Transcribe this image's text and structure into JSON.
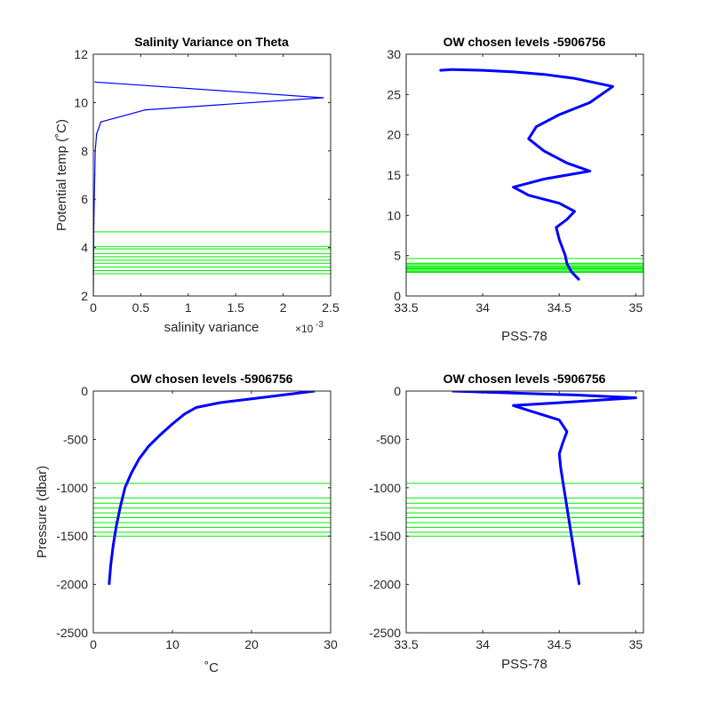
{
  "colors": {
    "profile": "#0000ff",
    "levels": "#00ee00",
    "axis": "#262626",
    "background": "#ffffff"
  },
  "chart_data": [
    {
      "id": "p1",
      "type": "line",
      "title": "Salinity Variance on Theta",
      "xlabel": "salinity variance",
      "ylabel": "Potential temp (˚C)",
      "x_exponent_label": "×10",
      "x_exponent_power": "-3",
      "xlim": [
        0,
        2.5
      ],
      "ylim": [
        2,
        12
      ],
      "xticks": [
        0,
        0.5,
        1,
        1.5,
        2,
        2.5
      ],
      "yticks": [
        2,
        4,
        6,
        8,
        10,
        12
      ],
      "xtick_labels": [
        "0",
        "0.5",
        "1",
        "1.5",
        "2",
        "2.5"
      ],
      "ytick_labels": [
        "2",
        "4",
        "6",
        "8",
        "10",
        "12"
      ],
      "grid": false,
      "series": [
        {
          "x": [
            0.0,
            0.002,
            0.004,
            0.006,
            0.01,
            0.015,
            0.02,
            0.035,
            0.08,
            0.55,
            2.42,
            0.02
          ],
          "y": [
            2.0,
            3.0,
            4.0,
            5.0,
            6.0,
            7.0,
            8.0,
            8.7,
            9.2,
            9.7,
            10.2,
            10.85
          ]
        }
      ],
      "hlines": [
        4.65,
        4.05,
        3.95,
        3.75,
        3.62,
        3.48,
        3.35,
        3.2,
        3.05,
        2.92
      ]
    },
    {
      "id": "p2",
      "type": "line",
      "title": "OW chosen levels -5906756",
      "xlabel": "PSS-78",
      "ylabel": "",
      "xlim": [
        33.5,
        35.05
      ],
      "ylim": [
        0,
        30
      ],
      "xticks": [
        33.5,
        34,
        34.5,
        35
      ],
      "yticks": [
        0,
        5,
        10,
        15,
        20,
        25,
        30
      ],
      "xtick_labels": [
        "33.5",
        "34",
        "34.5",
        "35"
      ],
      "ytick_labels": [
        "0",
        "5",
        "10",
        "15",
        "20",
        "25",
        "30"
      ],
      "grid": false,
      "series": [
        {
          "x": [
            34.63,
            34.58,
            34.55,
            34.54,
            34.52,
            34.5,
            34.48,
            34.55,
            34.6,
            34.5,
            34.4,
            34.3,
            34.25,
            34.2,
            34.3,
            34.4,
            34.55,
            34.7,
            34.55,
            34.4,
            34.3,
            34.35,
            34.5,
            34.7,
            34.85,
            34.6,
            34.4,
            34.2,
            34.0,
            33.8,
            33.72
          ],
          "y": [
            2.0,
            3.0,
            4.0,
            5.0,
            6.0,
            7.0,
            8.5,
            9.5,
            10.5,
            11.5,
            12.0,
            12.5,
            13.0,
            13.5,
            14.0,
            14.5,
            15.0,
            15.5,
            16.5,
            18.0,
            19.5,
            21.0,
            22.5,
            24.0,
            26.0,
            27.0,
            27.5,
            27.8,
            28.0,
            28.1,
            28.0
          ]
        }
      ],
      "hlines": [
        4.65,
        4.05,
        3.95,
        3.75,
        3.62,
        3.48,
        3.35,
        3.2,
        3.05,
        2.92
      ]
    },
    {
      "id": "p3",
      "type": "line",
      "title": "OW chosen levels -5906756",
      "xlabel": "˚C",
      "ylabel": "Pressure (dbar)",
      "xlim": [
        0,
        30
      ],
      "ylim": [
        -2500,
        0
      ],
      "xticks": [
        0,
        10,
        20,
        30
      ],
      "yticks": [
        -2500,
        -2000,
        -1500,
        -1000,
        -500,
        0
      ],
      "xtick_labels": [
        "0",
        "10",
        "20",
        "30"
      ],
      "ytick_labels": [
        "-2500",
        "-2000",
        "-1500",
        "-1000",
        "-500",
        "0"
      ],
      "grid": false,
      "series": [
        {
          "x": [
            2.0,
            2.2,
            2.5,
            2.9,
            3.4,
            4.0,
            4.8,
            5.8,
            7.0,
            8.5,
            10.0,
            11.5,
            13.0,
            16.0,
            20.0,
            24.0,
            28.0
          ],
          "y": [
            -2000,
            -1800,
            -1600,
            -1400,
            -1200,
            -1000,
            -850,
            -700,
            -570,
            -450,
            -340,
            -240,
            -170,
            -120,
            -80,
            -40,
            0
          ]
        }
      ],
      "hlines": [
        -955,
        -1105,
        -1160,
        -1210,
        -1260,
        -1310,
        -1360,
        -1410,
        -1460,
        -1500
      ]
    },
    {
      "id": "p4",
      "type": "line",
      "title": "OW chosen levels -5906756",
      "xlabel": "PSS-78",
      "ylabel": "",
      "xlim": [
        33.5,
        35.05
      ],
      "ylim": [
        -2500,
        0
      ],
      "xticks": [
        33.5,
        34,
        34.5,
        35
      ],
      "yticks": [
        -2500,
        -2000,
        -1500,
        -1000,
        -500,
        0
      ],
      "xtick_labels": [
        "33.5",
        "34",
        "34.5",
        "35"
      ],
      "ytick_labels": [
        "-2500",
        "-2000",
        "-1500",
        "-1000",
        "-500",
        "0"
      ],
      "grid": false,
      "series": [
        {
          "x": [
            34.63,
            34.61,
            34.59,
            34.57,
            34.55,
            34.53,
            34.51,
            34.5,
            34.52,
            34.55,
            34.5,
            34.4,
            34.3,
            34.2,
            34.5,
            34.8,
            35.0,
            34.6,
            34.2,
            33.8
          ],
          "y": [
            -2000,
            -1800,
            -1600,
            -1400,
            -1200,
            -1000,
            -800,
            -650,
            -550,
            -420,
            -300,
            -250,
            -200,
            -150,
            -120,
            -90,
            -70,
            -40,
            -20,
            0
          ]
        }
      ],
      "hlines": [
        -955,
        -1105,
        -1160,
        -1210,
        -1260,
        -1310,
        -1360,
        -1410,
        -1460,
        -1500
      ]
    }
  ]
}
